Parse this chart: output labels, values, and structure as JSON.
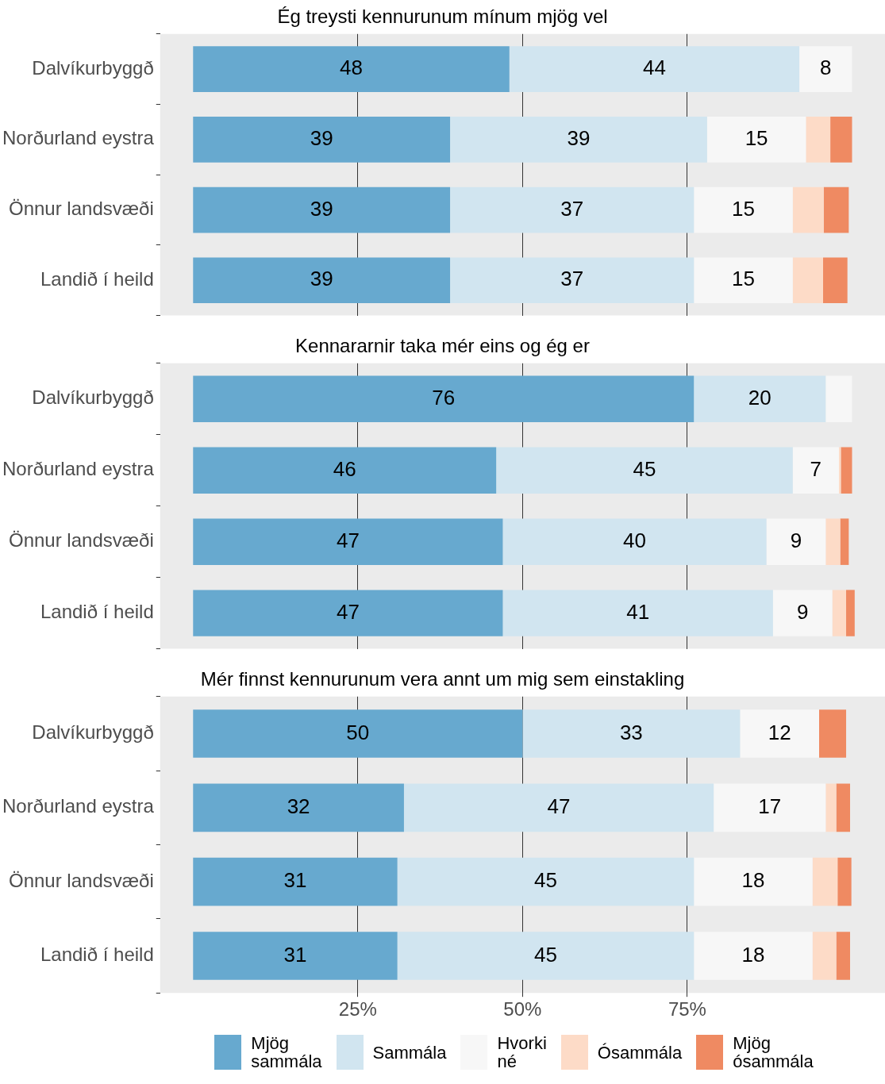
{
  "chart_data": [
    {
      "type": "bar",
      "orientation": "horizontal",
      "stacked": true,
      "title": "Ég treysti kennurunum mínum mjög vel",
      "categories": [
        "Dalvíkurbyggð",
        "Norðurland eystra",
        "Önnur landsvæði",
        "Landið í heild"
      ],
      "series": [
        {
          "color": "#67a9cf",
          "values": [
            48,
            39,
            39,
            39
          ],
          "value_labels": [
            "48",
            "39",
            "39",
            "39"
          ]
        },
        {
          "color": "#d1e5f0",
          "values": [
            44,
            39,
            37,
            37
          ],
          "value_labels": [
            "44",
            "39",
            "37",
            "37"
          ]
        },
        {
          "color": "#f7f7f7",
          "values": [
            8,
            15,
            15,
            15
          ],
          "value_labels": [
            "8",
            "15",
            "15",
            "15"
          ]
        },
        {
          "color": "#fddbc7",
          "values": [
            0,
            3.7,
            4.7,
            4.6
          ],
          "value_labels": [
            null,
            null,
            null,
            null
          ]
        },
        {
          "color": "#ef8a62",
          "values": [
            0,
            3.3,
            3.8,
            3.7
          ],
          "value_labels": [
            null,
            null,
            null,
            null
          ]
        }
      ],
      "xlim": [
        -5,
        105
      ],
      "xticks": [
        25,
        50,
        75
      ],
      "grid": "x",
      "legend": false,
      "tick_labels": "y"
    },
    {
      "type": "bar",
      "orientation": "horizontal",
      "stacked": true,
      "title": "Kennararnir taka mér eins og ég er",
      "categories": [
        "Dalvíkurbyggð",
        "Norðurland eystra",
        "Önnur landsvæði",
        "Landið í heild"
      ],
      "series": [
        {
          "color": "#67a9cf",
          "values": [
            76,
            46,
            47,
            47
          ],
          "value_labels": [
            "76",
            "46",
            "47",
            "47"
          ]
        },
        {
          "color": "#d1e5f0",
          "values": [
            20,
            45,
            40,
            41
          ],
          "value_labels": [
            "20",
            "45",
            "40",
            "41"
          ]
        },
        {
          "color": "#f7f7f7",
          "values": [
            4,
            7,
            9,
            9
          ],
          "value_labels": [
            null,
            "7",
            "9",
            "9"
          ]
        },
        {
          "color": "#fddbc7",
          "values": [
            0,
            0.3,
            2.2,
            2.1
          ],
          "value_labels": [
            null,
            null,
            null,
            null
          ]
        },
        {
          "color": "#ef8a62",
          "values": [
            0,
            1.7,
            1.3,
            1.3
          ],
          "value_labels": [
            null,
            null,
            null,
            null
          ]
        }
      ],
      "xlim": [
        -5,
        105
      ],
      "xticks": [
        25,
        50,
        75
      ],
      "grid": "x",
      "legend": false,
      "tick_labels": "y"
    },
    {
      "type": "bar",
      "orientation": "horizontal",
      "stacked": true,
      "title": "Mér finnst kennurunum vera annt um mig sem einstakling",
      "categories": [
        "Dalvíkurbyggð",
        "Norðurland eystra",
        "Önnur landsvæði",
        "Landið í heild"
      ],
      "series": [
        {
          "name": "Mjög sammála",
          "color": "#67a9cf",
          "values": [
            50,
            32,
            31,
            31
          ],
          "value_labels": [
            "50",
            "32",
            "31",
            "31"
          ]
        },
        {
          "name": "Sammála",
          "color": "#d1e5f0",
          "values": [
            33,
            47,
            45,
            45
          ],
          "value_labels": [
            "33",
            "47",
            "45",
            "45"
          ]
        },
        {
          "name": "Hvorki né",
          "color": "#f7f7f7",
          "values": [
            12,
            17,
            18,
            18
          ],
          "value_labels": [
            "12",
            "17",
            "18",
            "18"
          ]
        },
        {
          "name": "Ósammála",
          "color": "#fddbc7",
          "values": [
            0,
            1.6,
            3.8,
            3.6
          ],
          "value_labels": [
            null,
            null,
            null,
            null
          ]
        },
        {
          "name": "Mjög ósammála",
          "color": "#ef8a62",
          "values": [
            4.1,
            2.1,
            2.1,
            2.1
          ],
          "value_labels": [
            null,
            null,
            null,
            null
          ]
        }
      ],
      "xlim": [
        -5,
        105
      ],
      "xticks": [
        {
          "value": 25,
          "label": "25%"
        },
        {
          "value": 50,
          "label": "50%"
        },
        {
          "value": 75,
          "label": "75%"
        }
      ],
      "grid": "x",
      "legend": "bottom"
    }
  ]
}
